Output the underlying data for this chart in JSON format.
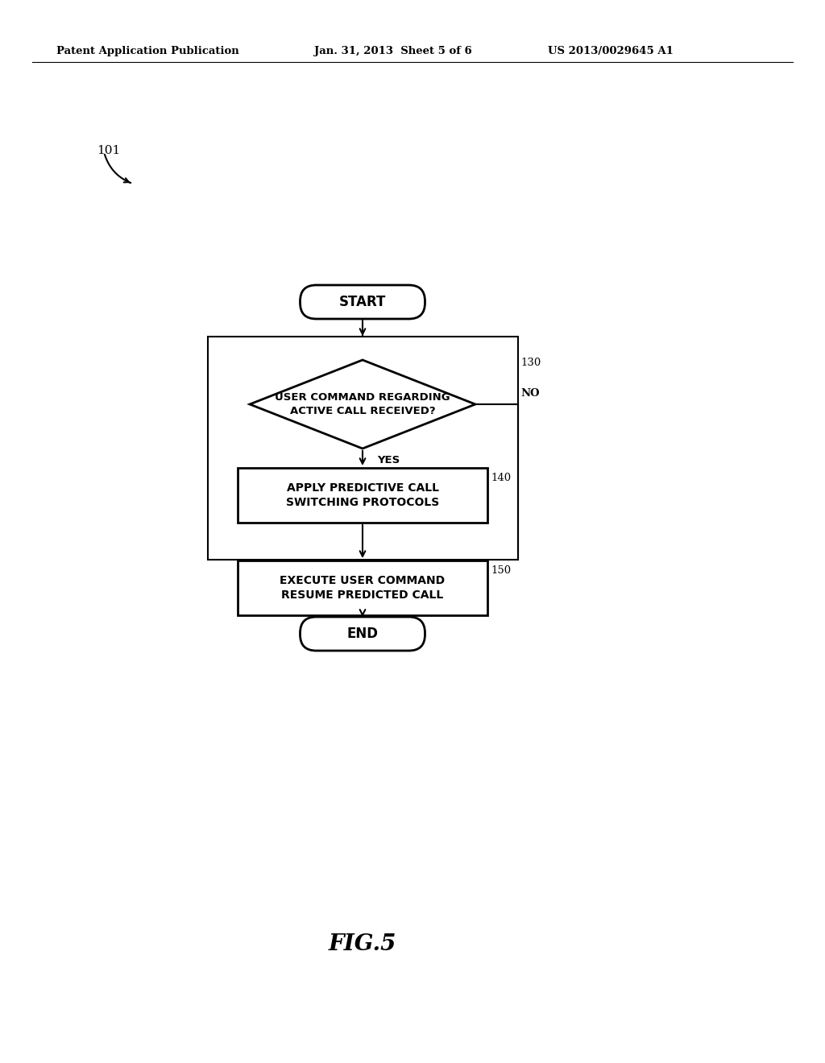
{
  "header_left": "Patent Application Publication",
  "header_mid": "Jan. 31, 2013  Sheet 5 of 6",
  "header_right": "US 2013/0029645 A1",
  "fig_label": "FIG.5",
  "label_101": "101",
  "flowchart": {
    "start_text": "START",
    "decision_text": "USER COMMAND REGARDING\nACTIVE CALL RECEIVED?",
    "decision_label": "130",
    "no_label": "NO",
    "yes_label": "YES",
    "box1_text": "APPLY PREDICTIVE CALL\nSWITCHING PROTOCOLS",
    "box1_label": "140",
    "box2_text": "EXECUTE USER COMMAND\nRESUME PREDICTED CALL",
    "box2_label": "150",
    "end_text": "END"
  },
  "bg_color": "#ffffff",
  "shape_color": "#ffffff",
  "line_color": "#000000",
  "text_color": "#000000"
}
